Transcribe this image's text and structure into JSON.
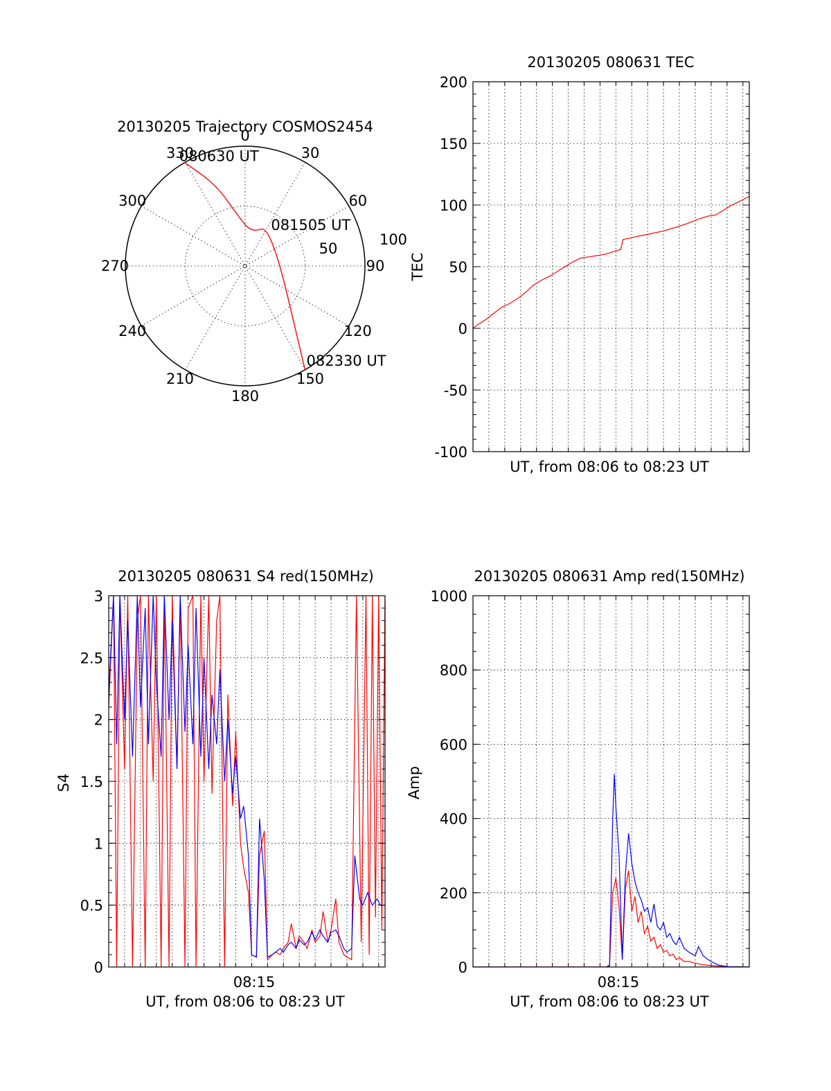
{
  "colors": {
    "red": "#ff0000",
    "blue": "#0000ff",
    "axis": "#000000"
  },
  "chart_data": [
    {
      "id": "polar",
      "type": "polar",
      "title": "20130205 Trajectory COSMOS2454",
      "angle_labels": [
        "0",
        "30",
        "60",
        "90",
        "120",
        "150",
        "180",
        "210",
        "240",
        "270",
        "300",
        "330"
      ],
      "radial_labels": [
        "50",
        "100"
      ],
      "radial_max": 100,
      "series": [
        {
          "color": "red",
          "points": [
            [
              -30.3,
              100
            ],
            [
              -19.7,
              72
            ],
            [
              -7.9,
              42
            ],
            [
              11.0,
              28.3
            ],
            [
              32.4,
              40
            ],
            [
              150,
              100
            ]
          ]
        }
      ],
      "annotations": [
        {
          "text": "080630 UT",
          "azimuth": -30.3,
          "elevation": 100
        },
        {
          "text": "081505 UT",
          "azimuth": 11.0,
          "elevation": 28.3
        },
        {
          "text": "082330 UT",
          "azimuth": 150,
          "elevation": 100
        }
      ]
    },
    {
      "id": "tec",
      "type": "line",
      "title": "20130205 080631 TEC",
      "xlabel": "UT, from 08:06 to 08:23 UT",
      "ylabel": "TEC",
      "ylim": [
        -100,
        200
      ],
      "yticks": [
        "-100",
        "-50",
        "0",
        "50",
        "100",
        "150",
        "200"
      ],
      "xlim": [
        0,
        17.4
      ],
      "grid": true,
      "series": [
        {
          "color": "red",
          "x": [
            0,
            0.3,
            0.8,
            1.3,
            1.8,
            2.3,
            2.8,
            3.3,
            3.8,
            4.3,
            4.8,
            5.3,
            5.8,
            6.3,
            6.8,
            7.3,
            7.8,
            8.3,
            8.8,
            9.3,
            9.45,
            9.8,
            10.5,
            11.3,
            12.0,
            12.8,
            13.5,
            14.3,
            14.8,
            15.3,
            15.8,
            16.3,
            16.8,
            17.4
          ],
          "y": [
            0,
            3,
            7,
            12,
            17,
            20,
            24,
            29,
            35,
            39,
            42,
            46,
            50,
            54,
            57,
            58,
            59,
            60,
            62,
            64,
            72,
            73,
            75,
            77,
            79,
            82,
            85,
            89,
            91,
            92,
            96,
            100,
            103,
            107
          ]
        }
      ]
    },
    {
      "id": "s4",
      "type": "line",
      "title": "20130205 080631 S4 red(150MHz)",
      "xlabel": "UT, from 08:06 to 08:23 UT",
      "ylabel": "S4",
      "ylim": [
        0,
        3
      ],
      "yticks": [
        "0",
        "0.5",
        "1",
        "1.5",
        "2",
        "2.5",
        "3"
      ],
      "xlim": [
        0,
        17.4
      ],
      "xtick_label": {
        "text": "08:15",
        "x": 9
      },
      "grid": true,
      "series": [
        {
          "color": "red",
          "x": [
            0,
            0.3,
            0.5,
            0.7,
            1.0,
            1.2,
            1.5,
            1.8,
            2.0,
            2.3,
            2.5,
            2.8,
            3.0,
            3.3,
            3.5,
            3.8,
            4.0,
            4.3,
            4.5,
            4.8,
            5.0,
            5.3,
            5.5,
            5.8,
            6.0,
            6.3,
            6.5,
            6.8,
            7.0,
            7.3,
            7.5,
            7.8,
            8.0,
            8.3,
            8.5,
            8.8,
            9.0,
            9.3,
            9.5,
            9.8,
            10.0,
            10.3,
            10.5,
            10.8,
            11.0,
            11.3,
            11.5,
            11.8,
            12.0,
            12.3,
            12.5,
            12.8,
            13.0,
            13.3,
            13.5,
            13.8,
            14.0,
            14.3,
            14.5,
            14.8,
            15.0,
            15.3,
            15.6,
            15.9,
            16.2,
            16.4,
            16.6,
            16.8,
            17.0,
            17.2,
            17.4
          ],
          "y": [
            2.1,
            3,
            0,
            3,
            1.6,
            3,
            0,
            2.8,
            3,
            0,
            3,
            1.5,
            3,
            0,
            3,
            0,
            3,
            1.6,
            3,
            0,
            2.9,
            3,
            0,
            3,
            1.5,
            3,
            1.4,
            2.8,
            3,
            0,
            2.2,
            1.3,
            1.9,
            1.0,
            0.8,
            0.6,
            0.1,
            0.08,
            0.9,
            1.1,
            0.06,
            0.1,
            0.12,
            0.1,
            0.15,
            0.2,
            0.35,
            0.15,
            0.25,
            0.2,
            0.15,
            0.3,
            0.2,
            0.25,
            0.45,
            0.2,
            0.3,
            0.55,
            0.2,
            0.1,
            0.08,
            0.06,
            3,
            0.2,
            3,
            0.1,
            3,
            0.4,
            3,
            0.3,
            3
          ]
        },
        {
          "color": "blue",
          "x": [
            0,
            0.3,
            0.5,
            0.7,
            1.0,
            1.2,
            1.5,
            1.8,
            2.0,
            2.3,
            2.5,
            2.8,
            3.0,
            3.3,
            3.5,
            3.8,
            4.0,
            4.3,
            4.5,
            4.8,
            5.0,
            5.3,
            5.5,
            5.8,
            6.0,
            6.3,
            6.5,
            6.8,
            7.0,
            7.3,
            7.5,
            7.8,
            8.0,
            8.3,
            8.5,
            8.8,
            9.0,
            9.3,
            9.5,
            9.8,
            10.0,
            10.3,
            10.5,
            10.8,
            11.0,
            11.3,
            11.5,
            11.8,
            12.0,
            12.3,
            12.5,
            12.8,
            13.0,
            13.3,
            13.5,
            13.8,
            14.0,
            14.3,
            14.5,
            14.8,
            15.0,
            15.3,
            15.5,
            15.8,
            16.0,
            16.3,
            16.6,
            16.9,
            17.1,
            17.4
          ],
          "y": [
            2.2,
            3,
            1.8,
            3,
            2.0,
            2.8,
            1.7,
            3,
            2.1,
            2.9,
            1.8,
            3,
            2.3,
            1.7,
            3,
            2.0,
            2.8,
            1.6,
            3,
            1.9,
            2.6,
            1.8,
            2.9,
            1.7,
            2.5,
            1.6,
            2.2,
            1.8,
            2.4,
            1.5,
            2.0,
            1.4,
            1.7,
            1.2,
            1.3,
            0.9,
            0.1,
            0.08,
            1.2,
            0.7,
            0.08,
            0.1,
            0.12,
            0.15,
            0.12,
            0.18,
            0.2,
            0.15,
            0.22,
            0.18,
            0.2,
            0.28,
            0.22,
            0.3,
            0.25,
            0.2,
            0.28,
            0.3,
            0.25,
            0.15,
            0.12,
            0.15,
            0.9,
            0.55,
            0.5,
            0.6,
            0.5,
            0.55,
            0.5,
            0.5
          ]
        }
      ]
    },
    {
      "id": "amp",
      "type": "line",
      "title": "20130205 080631 Amp red(150MHz)",
      "xlabel": "UT, from 08:06 to 08:23 UT",
      "ylabel": "Amp",
      "ylim": [
        0,
        1000
      ],
      "yticks": [
        "0",
        "200",
        "400",
        "600",
        "800",
        "1000"
      ],
      "xlim": [
        0,
        17.4
      ],
      "xtick_label": {
        "text": "08:15",
        "x": 9
      },
      "grid": true,
      "series": [
        {
          "color": "red",
          "x": [
            0,
            8.4,
            8.6,
            8.8,
            9.0,
            9.2,
            9.4,
            9.6,
            9.8,
            10.0,
            10.2,
            10.4,
            10.6,
            10.8,
            11.0,
            11.2,
            11.4,
            11.6,
            11.8,
            12.0,
            12.2,
            12.4,
            12.6,
            12.8,
            13.0,
            13.3,
            13.6,
            14.0,
            14.5,
            15.0,
            15.5,
            16.0,
            17.4
          ],
          "y": [
            0,
            0,
            2,
            200,
            240,
            160,
            20,
            210,
            260,
            150,
            190,
            120,
            150,
            90,
            110,
            70,
            80,
            50,
            60,
            40,
            45,
            30,
            35,
            20,
            25,
            15,
            15,
            10,
            6,
            4,
            2,
            1,
            0
          ]
        },
        {
          "color": "blue",
          "x": [
            0,
            8.4,
            8.6,
            8.8,
            8.9,
            9.0,
            9.2,
            9.4,
            9.6,
            9.8,
            10.0,
            10.2,
            10.4,
            10.6,
            10.8,
            11.0,
            11.2,
            11.4,
            11.6,
            11.8,
            12.0,
            12.2,
            12.4,
            12.6,
            12.8,
            13.0,
            13.3,
            13.6,
            13.8,
            14.0,
            14.2,
            14.5,
            14.8,
            15.2,
            15.5,
            16.0,
            17.4
          ],
          "y": [
            0,
            0,
            5,
            400,
            520,
            430,
            300,
            20,
            250,
            360,
            280,
            230,
            200,
            180,
            150,
            160,
            120,
            170,
            110,
            100,
            120,
            80,
            90,
            70,
            60,
            80,
            50,
            40,
            35,
            30,
            55,
            30,
            20,
            10,
            5,
            1,
            0
          ]
        }
      ]
    }
  ]
}
